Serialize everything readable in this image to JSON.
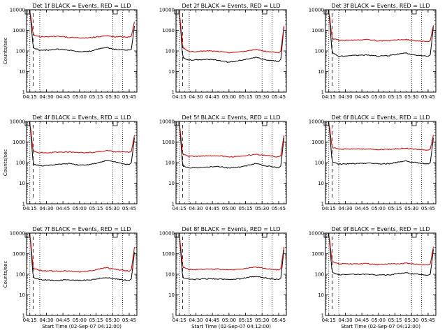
{
  "colors": {
    "events": "#000000",
    "lld": "#cc0000",
    "axis": "#000000",
    "background": "#ffffff"
  },
  "x_tick_labels": [
    "04:15",
    "04:30",
    "04:45",
    "05:00",
    "05:15",
    "05:30",
    "05:45"
  ],
  "y_tick_labels": [
    "1",
    "10",
    "100",
    "1000",
    "10000"
  ],
  "ylabel": "Counts/sec",
  "xlabel": "Start Time (02-Sep-07 04:12:00)",
  "chart_data": [
    {
      "type": "line",
      "title": "Det 1f BLACK = Events, RED = LLD",
      "show_xlabel": false,
      "show_ylabel": true,
      "xlim": [
        "04:12",
        "05:52"
      ],
      "ylim": [
        1,
        10000
      ],
      "y_scale": "log",
      "grid": false,
      "series": [
        {
          "name": "Events",
          "color": "#000000",
          "x": [
            "04:12",
            "04:15",
            "04:18",
            "04:24",
            "04:40",
            "04:50",
            "05:00",
            "05:10",
            "05:20",
            "05:25",
            "05:30",
            "05:38",
            "05:45",
            "05:47",
            "05:50"
          ],
          "values": [
            10000,
            10000,
            150,
            105,
            120,
            110,
            90,
            100,
            140,
            150,
            120,
            115,
            110,
            120,
            2000
          ]
        },
        {
          "name": "LLD",
          "color": "#cc0000",
          "x": [
            "04:12",
            "04:15",
            "04:18",
            "04:24",
            "04:40",
            "04:50",
            "05:00",
            "05:10",
            "05:20",
            "05:25",
            "05:30",
            "05:38",
            "05:45",
            "05:47",
            "05:50"
          ],
          "values": [
            10000,
            10000,
            600,
            480,
            520,
            460,
            430,
            440,
            520,
            540,
            500,
            480,
            470,
            520,
            3000
          ]
        }
      ],
      "vlines": {
        "dashed": [
          "04:18"
        ],
        "dotted": [
          "04:15",
          "04:24",
          "05:30",
          "05:39"
        ]
      }
    },
    {
      "type": "line",
      "title": "Det 2f BLACK = Events, RED = LLD",
      "show_xlabel": false,
      "show_ylabel": false,
      "xlim": [
        "04:12",
        "05:52"
      ],
      "ylim": [
        1,
        10000
      ],
      "y_scale": "log",
      "grid": false,
      "series": [
        {
          "name": "Events",
          "color": "#000000",
          "x": [
            "04:12",
            "04:15",
            "04:18",
            "04:24",
            "04:40",
            "04:50",
            "05:00",
            "05:10",
            "05:20",
            "05:25",
            "05:30",
            "05:38",
            "05:45",
            "05:47",
            "05:50"
          ],
          "values": [
            10000,
            10000,
            50,
            35,
            40,
            35,
            28,
            35,
            45,
            50,
            40,
            35,
            30,
            40,
            2000
          ]
        },
        {
          "name": "LLD",
          "color": "#cc0000",
          "x": [
            "04:12",
            "04:15",
            "04:18",
            "04:24",
            "04:40",
            "04:50",
            "05:00",
            "05:10",
            "05:20",
            "05:25",
            "05:30",
            "05:38",
            "05:45",
            "05:47",
            "05:50"
          ],
          "values": [
            10000,
            10000,
            150,
            90,
            100,
            95,
            80,
            90,
            110,
            120,
            100,
            90,
            80,
            100,
            2000
          ]
        }
      ],
      "vlines": {
        "dashed": [
          "04:18"
        ],
        "dotted": [
          "04:15",
          "04:24",
          "05:30",
          "05:39"
        ]
      }
    },
    {
      "type": "line",
      "title": "Det 3f BLACK = Events, RED = LLD",
      "show_xlabel": false,
      "show_ylabel": false,
      "xlim": [
        "04:12",
        "05:52"
      ],
      "ylim": [
        1,
        10000
      ],
      "y_scale": "log",
      "grid": false,
      "series": [
        {
          "name": "Events",
          "color": "#000000",
          "x": [
            "04:12",
            "04:15",
            "04:18",
            "04:24",
            "04:40",
            "04:50",
            "05:00",
            "05:10",
            "05:20",
            "05:25",
            "05:30",
            "05:38",
            "05:45",
            "05:47",
            "05:50"
          ],
          "values": [
            10000,
            10000,
            80,
            55,
            60,
            65,
            55,
            60,
            75,
            80,
            65,
            60,
            55,
            65,
            2000
          ]
        },
        {
          "name": "LLD",
          "color": "#cc0000",
          "x": [
            "04:12",
            "04:15",
            "04:18",
            "04:24",
            "04:40",
            "04:50",
            "05:00",
            "05:10",
            "05:20",
            "05:25",
            "05:30",
            "05:38",
            "05:45",
            "05:47",
            "05:50"
          ],
          "values": [
            10000,
            10000,
            400,
            330,
            340,
            360,
            310,
            320,
            350,
            360,
            330,
            300,
            280,
            320,
            2000
          ]
        }
      ],
      "vlines": {
        "dashed": [
          "04:18"
        ],
        "dotted": [
          "04:15",
          "04:24",
          "05:30",
          "05:39"
        ]
      }
    },
    {
      "type": "line",
      "title": "Det 4f BLACK = Events, RED = LLD",
      "show_xlabel": false,
      "show_ylabel": true,
      "xlim": [
        "04:12",
        "05:52"
      ],
      "ylim": [
        1,
        10000
      ],
      "y_scale": "log",
      "grid": false,
      "series": [
        {
          "name": "Events",
          "color": "#000000",
          "x": [
            "04:12",
            "04:15",
            "04:18",
            "04:24",
            "04:40",
            "04:50",
            "05:00",
            "05:10",
            "05:20",
            "05:25",
            "05:30",
            "05:38",
            "05:45",
            "05:47",
            "05:50"
          ],
          "values": [
            10000,
            10000,
            90,
            70,
            80,
            90,
            75,
            80,
            110,
            130,
            110,
            90,
            80,
            100,
            2000
          ]
        },
        {
          "name": "LLD",
          "color": "#cc0000",
          "x": [
            "04:12",
            "04:15",
            "04:18",
            "04:24",
            "04:40",
            "04:50",
            "05:00",
            "05:10",
            "05:20",
            "05:25",
            "05:30",
            "05:38",
            "05:45",
            "05:47",
            "05:50"
          ],
          "values": [
            10000,
            10000,
            350,
            300,
            320,
            330,
            300,
            310,
            360,
            380,
            350,
            330,
            320,
            350,
            2500
          ]
        }
      ],
      "vlines": {
        "dashed": [
          "04:18"
        ],
        "dotted": [
          "04:15",
          "04:24",
          "05:30",
          "05:39"
        ]
      }
    },
    {
      "type": "line",
      "title": "Det 5f BLACK = Events, RED = LLD",
      "show_xlabel": false,
      "show_ylabel": false,
      "xlim": [
        "04:12",
        "05:52"
      ],
      "ylim": [
        1,
        10000
      ],
      "y_scale": "log",
      "grid": false,
      "series": [
        {
          "name": "Events",
          "color": "#000000",
          "x": [
            "04:12",
            "04:15",
            "04:18",
            "04:24",
            "04:40",
            "04:50",
            "05:00",
            "05:10",
            "05:20",
            "05:25",
            "05:30",
            "05:38",
            "05:45",
            "05:47",
            "05:50"
          ],
          "values": [
            10000,
            10000,
            70,
            55,
            60,
            65,
            55,
            60,
            80,
            90,
            75,
            65,
            55,
            70,
            2000
          ]
        },
        {
          "name": "LLD",
          "color": "#cc0000",
          "x": [
            "04:12",
            "04:15",
            "04:18",
            "04:24",
            "04:40",
            "04:50",
            "05:00",
            "05:10",
            "05:20",
            "05:25",
            "05:30",
            "05:38",
            "05:45",
            "05:47",
            "05:50"
          ],
          "values": [
            10000,
            10000,
            250,
            200,
            210,
            220,
            190,
            200,
            240,
            260,
            230,
            210,
            190,
            220,
            2500
          ]
        }
      ],
      "vlines": {
        "dashed": [
          "04:18"
        ],
        "dotted": [
          "04:15",
          "04:24",
          "05:30",
          "05:39"
        ]
      }
    },
    {
      "type": "line",
      "title": "Det 6f BLACK = Events, RED = LLD",
      "show_xlabel": false,
      "show_ylabel": false,
      "xlim": [
        "04:12",
        "05:52"
      ],
      "ylim": [
        1,
        10000
      ],
      "y_scale": "log",
      "grid": false,
      "series": [
        {
          "name": "Events",
          "color": "#000000",
          "x": [
            "04:12",
            "04:15",
            "04:18",
            "04:24",
            "04:40",
            "04:50",
            "05:00",
            "05:10",
            "05:20",
            "05:25",
            "05:30",
            "05:38",
            "05:45",
            "05:47",
            "05:50"
          ],
          "values": [
            10000,
            10000,
            110,
            85,
            90,
            95,
            85,
            90,
            110,
            120,
            105,
            95,
            85,
            100,
            2000
          ]
        },
        {
          "name": "LLD",
          "color": "#cc0000",
          "x": [
            "04:12",
            "04:15",
            "04:18",
            "04:24",
            "04:40",
            "04:50",
            "05:00",
            "05:10",
            "05:20",
            "05:25",
            "05:30",
            "05:38",
            "05:45",
            "05:47",
            "05:50"
          ],
          "values": [
            10000,
            10000,
            550,
            450,
            460,
            470,
            430,
            440,
            480,
            500,
            460,
            430,
            400,
            460,
            2500
          ]
        }
      ],
      "vlines": {
        "dashed": [
          "04:18"
        ],
        "dotted": [
          "04:15",
          "04:24",
          "05:30",
          "05:39"
        ]
      }
    },
    {
      "type": "line",
      "title": "Det 7f BLACK = Events, RED = LLD",
      "show_xlabel": true,
      "show_ylabel": true,
      "xlim": [
        "04:12",
        "05:52"
      ],
      "ylim": [
        1,
        10000
      ],
      "y_scale": "log",
      "grid": false,
      "series": [
        {
          "name": "Events",
          "color": "#000000",
          "x": [
            "04:12",
            "04:15",
            "04:18",
            "04:24",
            "04:40",
            "04:50",
            "05:00",
            "05:10",
            "05:20",
            "05:25",
            "05:30",
            "05:38",
            "05:45",
            "05:47",
            "05:50"
          ],
          "values": [
            10000,
            10000,
            70,
            55,
            50,
            55,
            50,
            55,
            65,
            70,
            60,
            55,
            50,
            60,
            1500
          ]
        },
        {
          "name": "LLD",
          "color": "#cc0000",
          "x": [
            "04:12",
            "04:15",
            "04:18",
            "04:24",
            "04:40",
            "04:50",
            "05:00",
            "05:10",
            "05:20",
            "05:25",
            "05:30",
            "05:38",
            "05:45",
            "05:47",
            "05:50"
          ],
          "values": [
            10000,
            10000,
            200,
            150,
            140,
            150,
            130,
            150,
            190,
            210,
            180,
            160,
            140,
            170,
            2500
          ]
        }
      ],
      "vlines": {
        "dashed": [
          "04:18"
        ],
        "dotted": [
          "04:15",
          "04:24",
          "05:30",
          "05:39"
        ]
      }
    },
    {
      "type": "line",
      "title": "Det 8f BLACK = Events, RED = LLD",
      "show_xlabel": true,
      "show_ylabel": false,
      "xlim": [
        "04:12",
        "05:52"
      ],
      "ylim": [
        1,
        10000
      ],
      "y_scale": "log",
      "grid": false,
      "series": [
        {
          "name": "Events",
          "color": "#000000",
          "x": [
            "04:12",
            "04:15",
            "04:18",
            "04:24",
            "04:40",
            "04:50",
            "05:00",
            "05:10",
            "05:20",
            "05:25",
            "05:30",
            "05:38",
            "05:45",
            "05:47",
            "05:50"
          ],
          "values": [
            10000,
            10000,
            70,
            55,
            60,
            60,
            55,
            60,
            75,
            80,
            70,
            60,
            55,
            65,
            2000
          ]
        },
        {
          "name": "LLD",
          "color": "#cc0000",
          "x": [
            "04:12",
            "04:15",
            "04:18",
            "04:24",
            "04:40",
            "04:50",
            "05:00",
            "05:10",
            "05:20",
            "05:25",
            "05:30",
            "05:38",
            "05:45",
            "05:47",
            "05:50"
          ],
          "values": [
            10000,
            10000,
            220,
            170,
            175,
            180,
            165,
            175,
            210,
            220,
            200,
            180,
            160,
            190,
            2500
          ]
        }
      ],
      "vlines": {
        "dashed": [
          "04:18"
        ],
        "dotted": [
          "04:15",
          "04:24",
          "05:30",
          "05:39"
        ]
      }
    },
    {
      "type": "line",
      "title": "Det 9f BLACK = Events, RED = LLD",
      "show_xlabel": true,
      "show_ylabel": false,
      "xlim": [
        "04:12",
        "05:52"
      ],
      "ylim": [
        1,
        10000
      ],
      "y_scale": "log",
      "grid": false,
      "series": [
        {
          "name": "Events",
          "color": "#000000",
          "x": [
            "04:12",
            "04:15",
            "04:18",
            "04:24",
            "04:40",
            "04:50",
            "05:00",
            "05:10",
            "05:20",
            "05:25",
            "05:30",
            "05:38",
            "05:45",
            "05:47",
            "05:50"
          ],
          "values": [
            10000,
            10000,
            120,
            95,
            100,
            100,
            90,
            95,
            110,
            120,
            105,
            100,
            90,
            100,
            2000
          ]
        },
        {
          "name": "LLD",
          "color": "#cc0000",
          "x": [
            "04:12",
            "04:15",
            "04:18",
            "04:24",
            "04:40",
            "04:50",
            "05:00",
            "05:10",
            "05:20",
            "05:25",
            "05:30",
            "05:38",
            "05:45",
            "05:47",
            "05:50"
          ],
          "values": [
            10000,
            10000,
            400,
            320,
            320,
            330,
            300,
            310,
            330,
            340,
            320,
            300,
            280,
            320,
            2500
          ]
        }
      ],
      "vlines": {
        "dashed": [
          "04:18"
        ],
        "dotted": [
          "04:15",
          "04:24",
          "05:30",
          "05:39"
        ]
      }
    }
  ]
}
